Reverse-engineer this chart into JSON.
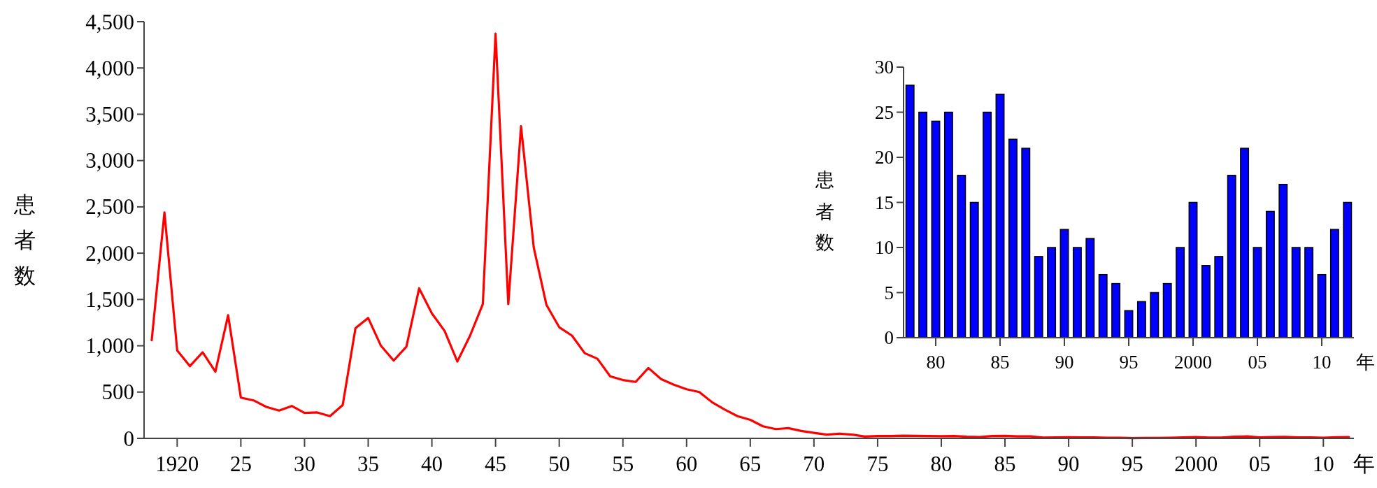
{
  "chart_data": [
    {
      "type": "line",
      "color": "#ff0000",
      "ylabel": "患者数",
      "xlabel": "年",
      "xlim": [
        1917.4,
        2012.4
      ],
      "ylim": [
        0,
        4500
      ],
      "xticks": [
        {
          "value": 1920,
          "label": "1920"
        },
        {
          "value": 1925,
          "label": "25"
        },
        {
          "value": 1930,
          "label": "30"
        },
        {
          "value": 1935,
          "label": "35"
        },
        {
          "value": 1940,
          "label": "40"
        },
        {
          "value": 1945,
          "label": "45"
        },
        {
          "value": 1950,
          "label": "50"
        },
        {
          "value": 1955,
          "label": "55"
        },
        {
          "value": 1960,
          "label": "60"
        },
        {
          "value": 1965,
          "label": "65"
        },
        {
          "value": 1970,
          "label": "70"
        },
        {
          "value": 1975,
          "label": "75"
        },
        {
          "value": 1980,
          "label": "80"
        },
        {
          "value": 1985,
          "label": "85"
        },
        {
          "value": 1990,
          "label": "90"
        },
        {
          "value": 1995,
          "label": "95"
        },
        {
          "value": 2000,
          "label": "2000"
        },
        {
          "value": 2005,
          "label": "05"
        },
        {
          "value": 2010,
          "label": "10"
        }
      ],
      "yticks": [
        0,
        500,
        {
          "value": 1000,
          "label": "1,000"
        },
        {
          "value": 1500,
          "label": "1,500"
        },
        {
          "value": 2000,
          "label": "2,000"
        },
        {
          "value": 2500,
          "label": "2,500"
        },
        {
          "value": 3000,
          "label": "3,000"
        },
        {
          "value": 3500,
          "label": "3,500"
        },
        {
          "value": 4000,
          "label": "4,000"
        },
        {
          "value": 4500,
          "label": "4,500"
        }
      ],
      "x": [
        1918,
        1919,
        1920,
        1921,
        1922,
        1923,
        1924,
        1925,
        1926,
        1927,
        1928,
        1929,
        1930,
        1931,
        1932,
        1933,
        1934,
        1935,
        1936,
        1937,
        1938,
        1939,
        1940,
        1941,
        1942,
        1943,
        1944,
        1945,
        1946,
        1947,
        1948,
        1949,
        1950,
        1951,
        1952,
        1953,
        1954,
        1955,
        1956,
        1957,
        1958,
        1959,
        1960,
        1961,
        1962,
        1963,
        1964,
        1965,
        1966,
        1967,
        1968,
        1969,
        1970,
        1971,
        1972,
        1973,
        1974,
        1975,
        1976,
        1977,
        1978,
        1979,
        1980,
        1981,
        1982,
        1983,
        1984,
        1985,
        1986,
        1987,
        1988,
        1989,
        1990,
        1991,
        1992,
        1993,
        1994,
        1995,
        1996,
        1997,
        1998,
        1999,
        2000,
        2001,
        2002,
        2003,
        2004,
        2005,
        2006,
        2007,
        2008,
        2009,
        2010,
        2011,
        2012
      ],
      "values": [
        1060,
        2440,
        950,
        780,
        930,
        720,
        1330,
        440,
        410,
        340,
        300,
        350,
        275,
        280,
        240,
        360,
        1190,
        1300,
        1000,
        840,
        990,
        1620,
        1350,
        1160,
        830,
        1110,
        1450,
        4370,
        1450,
        3370,
        2060,
        1440,
        1200,
        1110,
        920,
        860,
        670,
        630,
        610,
        760,
        640,
        580,
        530,
        500,
        390,
        310,
        240,
        200,
        130,
        100,
        110,
        80,
        60,
        40,
        50,
        40,
        20,
        25,
        25,
        30,
        28,
        25,
        24,
        25,
        18,
        15,
        25,
        27,
        22,
        21,
        9,
        10,
        12,
        10,
        11,
        7,
        6,
        3,
        4,
        5,
        6,
        10,
        15,
        8,
        9,
        18,
        21,
        10,
        14,
        17,
        10,
        10,
        7,
        12,
        15
      ]
    },
    {
      "type": "bar",
      "color": "#0000ff",
      "ylabel": "患者数",
      "xlabel": "年",
      "xlim": [
        1977.5,
        2012.5
      ],
      "ylim": [
        0,
        30
      ],
      "xticks": [
        {
          "value": 1980,
          "label": "80"
        },
        {
          "value": 1985,
          "label": "85"
        },
        {
          "value": 1990,
          "label": "90"
        },
        {
          "value": 1995,
          "label": "95"
        },
        {
          "value": 2000,
          "label": "2000"
        },
        {
          "value": 2005,
          "label": "05"
        },
        {
          "value": 2010,
          "label": "10"
        }
      ],
      "yticks": [
        0,
        5,
        10,
        15,
        20,
        25,
        30
      ],
      "x": [
        1978,
        1979,
        1980,
        1981,
        1982,
        1983,
        1984,
        1985,
        1986,
        1987,
        1988,
        1989,
        1990,
        1991,
        1992,
        1993,
        1994,
        1995,
        1996,
        1997,
        1998,
        1999,
        2000,
        2001,
        2002,
        2003,
        2004,
        2005,
        2006,
        2007,
        2008,
        2009,
        2010,
        2011,
        2012
      ],
      "values": [
        28,
        25,
        24,
        25,
        18,
        15,
        25,
        27,
        22,
        21,
        9,
        10,
        12,
        10,
        11,
        7,
        6,
        3,
        4,
        5,
        6,
        10,
        15,
        8,
        9,
        18,
        21,
        10,
        14,
        17,
        10,
        10,
        7,
        12,
        15
      ]
    }
  ]
}
